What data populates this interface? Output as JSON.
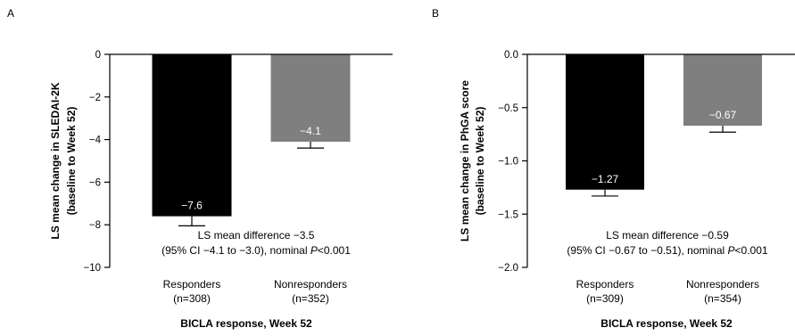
{
  "chart_data": [
    {
      "panel": "A",
      "type": "bar",
      "ylabel_lines": [
        "LS mean change in SLEDAI-2K",
        "(baseline to Week 52)"
      ],
      "xlabel": "BICLA response, Week 52",
      "ylim": [
        -10,
        0
      ],
      "yticks": [
        0,
        -2,
        -4,
        -6,
        -8,
        -10
      ],
      "ytick_labels": [
        "0",
        "−2",
        "−4",
        "−6",
        "−8",
        "−10"
      ],
      "categories": [
        {
          "name": "Responders",
          "n": "(n=308)"
        },
        {
          "name": "Nonresponders",
          "n": "(n=352)"
        }
      ],
      "values": [
        -7.6,
        -4.1
      ],
      "value_labels": [
        "−7.6",
        "−4.1"
      ],
      "errors": [
        0.45,
        0.3
      ],
      "colors": [
        "#000000",
        "#7f7f7f"
      ],
      "annotation_line1": "LS mean difference −3.5",
      "annotation_line2_pre": "(95% CI −4.1 to −3.0), nominal ",
      "annotation_p": "P",
      "annotation_line2_post": "<0.001"
    },
    {
      "panel": "B",
      "type": "bar",
      "ylabel_lines": [
        "LS mean change in PhGA score",
        "(baseline to Week 52)"
      ],
      "xlabel": "BICLA response, Week 52",
      "ylim": [
        -2.0,
        0.0
      ],
      "yticks": [
        0.0,
        -0.5,
        -1.0,
        -1.5,
        -2.0
      ],
      "ytick_labels": [
        "0.0",
        "−0.5",
        "−1.0",
        "−1.5",
        "−2.0"
      ],
      "categories": [
        {
          "name": "Responders",
          "n": "(n=309)"
        },
        {
          "name": "Nonresponders",
          "n": "(n=354)"
        }
      ],
      "values": [
        -1.27,
        -0.67
      ],
      "value_labels": [
        "−1.27",
        "−0.67"
      ],
      "errors": [
        0.06,
        0.06
      ],
      "colors": [
        "#000000",
        "#7f7f7f"
      ],
      "annotation_line1": "LS mean difference −0.59",
      "annotation_line2_pre": "(95% CI −0.67 to −0.51), nominal ",
      "annotation_p": "P",
      "annotation_line2_post": "<0.001"
    }
  ]
}
